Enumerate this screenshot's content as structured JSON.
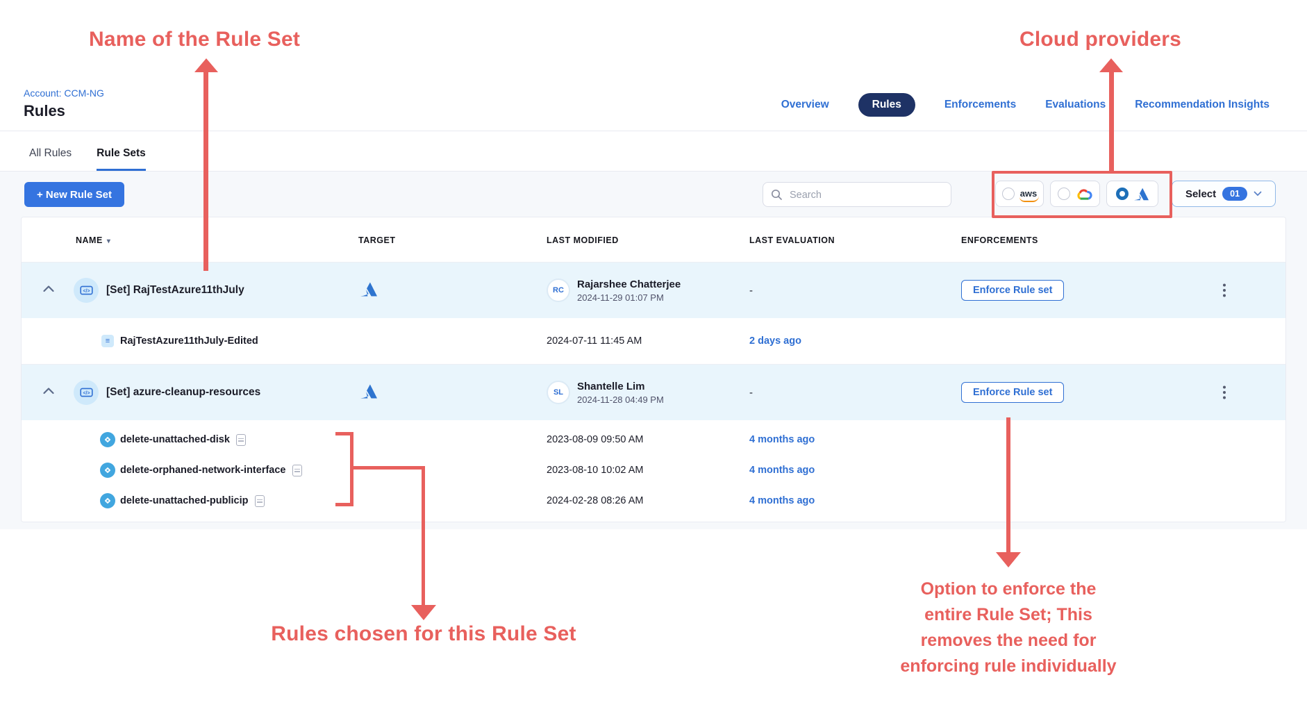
{
  "annotations": {
    "name_of_rule_set": "Name of the Rule Set",
    "cloud_providers": "Cloud providers",
    "rules_chosen": "Rules chosen for this Rule Set",
    "enforce_note_lines": [
      "Option to enforce the",
      "entire Rule Set; This",
      "removes the need for",
      "enforcing rule individually"
    ],
    "accent_color": "#e8605d"
  },
  "header": {
    "account": "Account: CCM-NG",
    "title": "Rules",
    "nav": [
      {
        "label": "Overview"
      },
      {
        "label": "Rules",
        "active": true
      },
      {
        "label": "Enforcements"
      },
      {
        "label": "Evaluations"
      },
      {
        "label": "Recommendation Insights"
      }
    ]
  },
  "tabs": [
    {
      "label": "All Rules",
      "active": false
    },
    {
      "label": "Rule Sets",
      "active": true
    }
  ],
  "toolbar": {
    "new_rule_set_label": "+ New Rule Set",
    "search_placeholder": "Search",
    "aws_logo_text": "aws",
    "providers": [
      {
        "name": "aws",
        "selected": false
      },
      {
        "name": "gcp",
        "selected": false
      },
      {
        "name": "azure",
        "selected": true
      }
    ],
    "select_label": "Select",
    "select_count": "01",
    "primary_color": "#3574e0"
  },
  "table": {
    "columns": [
      "NAME",
      "TARGET",
      "LAST MODIFIED",
      "LAST EVALUATION",
      "ENFORCEMENTS"
    ],
    "enforce_button": "Enforce Rule set",
    "groups": [
      {
        "name": "[Set] RajTestAzure11thJuly",
        "target": "azure",
        "avatar": "RC",
        "modified_by": "Rajarshee Chatterjee",
        "modified_at": "2024-11-29 01:07 PM",
        "last_evaluation": "-",
        "rules": [
          {
            "icon": "doc",
            "name": "RajTestAzure11thJuly-Edited",
            "modified": "2024-07-11 11:45 AM",
            "evaluation": "2 days ago"
          }
        ]
      },
      {
        "name": "[Set] azure-cleanup-resources",
        "target": "azure",
        "avatar": "SL",
        "modified_by": "Shantelle Lim",
        "modified_at": "2024-11-28 04:49 PM",
        "last_evaluation": "-",
        "rules": [
          {
            "icon": "rule",
            "name": "delete-unattached-disk",
            "modified": "2023-08-09 09:50 AM",
            "evaluation": "4 months ago"
          },
          {
            "icon": "rule",
            "name": "delete-orphaned-network-interface",
            "modified": "2023-08-10 10:02 AM",
            "evaluation": "4 months ago"
          },
          {
            "icon": "rule",
            "name": "delete-unattached-publicip",
            "modified": "2024-02-28 08:26 AM",
            "evaluation": "4 months ago"
          }
        ]
      }
    ]
  }
}
